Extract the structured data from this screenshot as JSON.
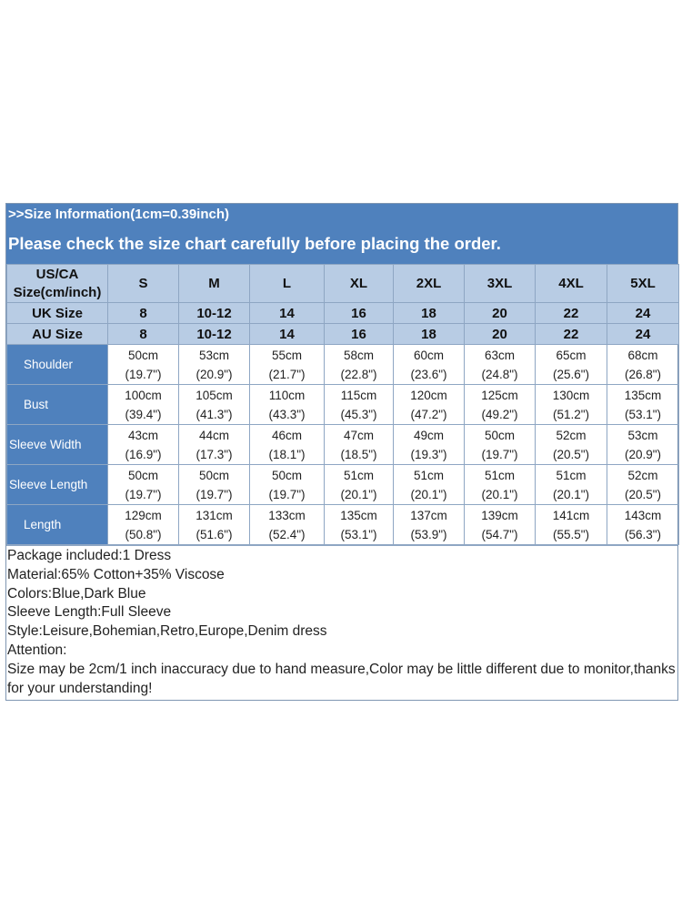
{
  "banner": {
    "info": ">>Size Information(1cm=0.39inch)",
    "notice": "Please check the size chart carefully before placing the order."
  },
  "table": {
    "corner_line1": "US/CA",
    "corner_line2": "Size(cm/inch)",
    "sizes": [
      "S",
      "M",
      "L",
      "XL",
      "2XL",
      "3XL",
      "4XL",
      "5XL"
    ],
    "uk": {
      "label": "UK Size",
      "values": [
        "8",
        "10-12",
        "14",
        "16",
        "18",
        "20",
        "22",
        "24"
      ]
    },
    "au": {
      "label": "AU Size",
      "values": [
        "8",
        "10-12",
        "14",
        "16",
        "18",
        "20",
        "22",
        "24"
      ]
    },
    "rows": [
      {
        "label": "Shoulder",
        "align": "center",
        "cm": [
          "50cm",
          "53cm",
          "55cm",
          "58cm",
          "60cm",
          "63cm",
          "65cm",
          "68cm"
        ],
        "inch": [
          "(19.7\")",
          "(20.9\")",
          "(21.7\")",
          "(22.8\")",
          "(23.6\")",
          "(24.8\")",
          "(25.6\")",
          "(26.8\")"
        ]
      },
      {
        "label": "Bust",
        "align": "center",
        "cm": [
          "100cm",
          "105cm",
          "110cm",
          "115cm",
          "120cm",
          "125cm",
          "130cm",
          "135cm"
        ],
        "inch": [
          "(39.4\")",
          "(41.3\")",
          "(43.3\")",
          "(45.3\")",
          "(47.2\")",
          "(49.2\")",
          "(51.2\")",
          "(53.1\")"
        ]
      },
      {
        "label": "Sleeve Width",
        "align": "left",
        "cm": [
          "43cm",
          "44cm",
          "46cm",
          "47cm",
          "49cm",
          "50cm",
          "52cm",
          "53cm"
        ],
        "inch": [
          "(16.9\")",
          "(17.3\")",
          "(18.1\")",
          "(18.5\")",
          "(19.3\")",
          "(19.7\")",
          "(20.5\")",
          "(20.9\")"
        ]
      },
      {
        "label": "Sleeve Length",
        "align": "left",
        "cm": [
          "50cm",
          "50cm",
          "50cm",
          "51cm",
          "51cm",
          "51cm",
          "51cm",
          "52cm"
        ],
        "inch": [
          "(19.7\")",
          "(19.7\")",
          "(19.7\")",
          "(20.1\")",
          "(20.1\")",
          "(20.1\")",
          "(20.1\")",
          "(20.5\")"
        ]
      },
      {
        "label": "Length",
        "align": "center",
        "cm": [
          "129cm",
          "131cm",
          "133cm",
          "135cm",
          "137cm",
          "139cm",
          "141cm",
          "143cm"
        ],
        "inch": [
          "(50.8\")",
          "(51.6\")",
          "(52.4\")",
          "(53.1\")",
          "(53.9\")",
          "(54.7\")",
          "(55.5\")",
          "(56.3\")"
        ]
      }
    ]
  },
  "notes": {
    "package": "Package included:1 Dress",
    "material": "Material:65% Cotton+35% Viscose",
    "colors": "Colors:Blue,Dark Blue",
    "sleeve": "Sleeve Length:Full Sleeve",
    "style": "Style:Leisure,Bohemian,Retro,Europe,Denim dress",
    "attention": "Attention:",
    "disclaimer": "Size may be 2cm/1 inch inaccuracy due to hand measure,Color may be little different due to monitor,thanks for your understanding!"
  }
}
